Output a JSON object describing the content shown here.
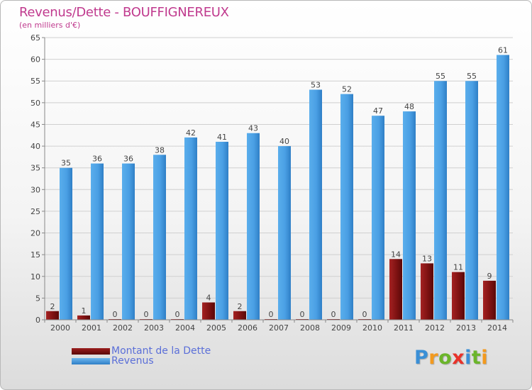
{
  "header": {
    "title": "Revenus/Dette - BOUFFIGNEREUX",
    "subtitle": "(en milliers d'€)"
  },
  "legend": {
    "debt_label": "Montant de la Dette",
    "revenue_label": "Revenus"
  },
  "logo": {
    "text": "Proxiti",
    "letters": [
      "P",
      "r",
      "o",
      "x",
      "i",
      "t",
      "i"
    ],
    "letter_colors": [
      "#3a8fd6",
      "#f39a1e",
      "#6bb52a",
      "#e8322a",
      "#3a8fd6",
      "#6bb52a",
      "#f39a1e"
    ]
  },
  "chart_data": {
    "type": "bar",
    "title": "Revenus/Dette - BOUFFIGNEREUX",
    "subtitle": "(en milliers d'€)",
    "categories": [
      "2000",
      "2001",
      "2002",
      "2003",
      "2004",
      "2005",
      "2006",
      "2007",
      "2008",
      "2009",
      "2010",
      "2011",
      "2012",
      "2013",
      "2014"
    ],
    "series": [
      {
        "name": "Montant de la Dette",
        "color": "#7a1010",
        "values": [
          2,
          1,
          0,
          0,
          0,
          4,
          2,
          0,
          0,
          0,
          0,
          14,
          13,
          11,
          9
        ]
      },
      {
        "name": "Revenus",
        "color": "#3d96e0",
        "values": [
          35,
          36,
          36,
          38,
          42,
          41,
          43,
          40,
          53,
          52,
          47,
          48,
          55,
          55,
          61
        ]
      }
    ],
    "ylim": [
      0,
      65
    ],
    "yticks": [
      0,
      5,
      10,
      15,
      20,
      25,
      30,
      35,
      40,
      45,
      50,
      55,
      60,
      65
    ],
    "grid": true,
    "legend_position": "bottom-left"
  }
}
